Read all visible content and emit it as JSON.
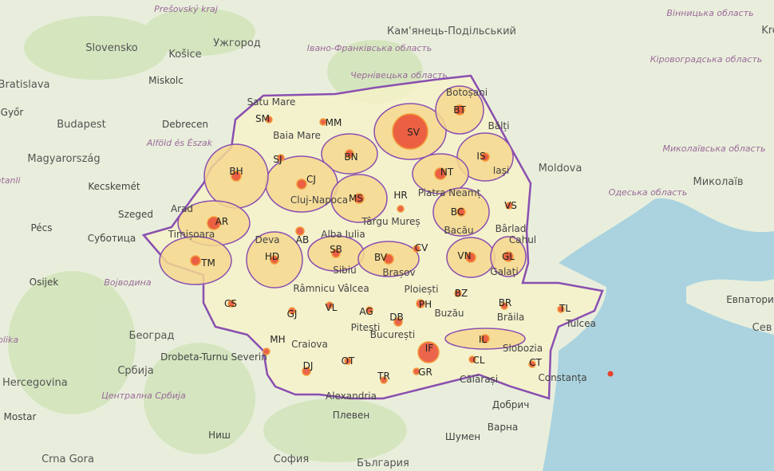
{
  "colors": {
    "land": "#e9eedc",
    "sea": "#aad3df",
    "forest": "#cfe3b8",
    "county_low": "#f6f2c9",
    "county_high": "#f5d88f",
    "border": "#8a4fb0",
    "bubble": "#e8412c"
  },
  "counties": [
    {
      "code": "SV",
      "level": "high"
    },
    {
      "code": "BT",
      "level": "high"
    },
    {
      "code": "IS",
      "level": "high"
    },
    {
      "code": "NT",
      "level": "high"
    },
    {
      "code": "BC",
      "level": "high"
    },
    {
      "code": "VS",
      "level": "low"
    },
    {
      "code": "VN",
      "level": "high"
    },
    {
      "code": "GL",
      "level": "high"
    },
    {
      "code": "MM",
      "level": "low"
    },
    {
      "code": "SM",
      "level": "low"
    },
    {
      "code": "SJ",
      "level": "low"
    },
    {
      "code": "BN",
      "level": "high"
    },
    {
      "code": "CJ",
      "level": "high"
    },
    {
      "code": "BH",
      "level": "high"
    },
    {
      "code": "MS",
      "level": "high"
    },
    {
      "code": "HR",
      "level": "low"
    },
    {
      "code": "AR",
      "level": "high"
    },
    {
      "code": "AB",
      "level": "low"
    },
    {
      "code": "TM",
      "level": "high"
    },
    {
      "code": "HD",
      "level": "high"
    },
    {
      "code": "SB",
      "level": "high"
    },
    {
      "code": "BV",
      "level": "high"
    },
    {
      "code": "CV",
      "level": "low"
    },
    {
      "code": "BZ",
      "level": "low"
    },
    {
      "code": "BR",
      "level": "low"
    },
    {
      "code": "TL",
      "level": "low"
    },
    {
      "code": "CS",
      "level": "low"
    },
    {
      "code": "GJ",
      "level": "low"
    },
    {
      "code": "VL",
      "level": "low"
    },
    {
      "code": "AG",
      "level": "low"
    },
    {
      "code": "PH",
      "level": "low"
    },
    {
      "code": "DB",
      "level": "low"
    },
    {
      "code": "MH",
      "level": "low"
    },
    {
      "code": "DJ",
      "level": "low"
    },
    {
      "code": "OT",
      "level": "low"
    },
    {
      "code": "TR",
      "level": "low"
    },
    {
      "code": "GR",
      "level": "low"
    },
    {
      "code": "IF",
      "level": "high"
    },
    {
      "code": "IL",
      "level": "high"
    },
    {
      "code": "CL",
      "level": "low"
    },
    {
      "code": "CT",
      "level": "low"
    }
  ],
  "background_labels": [
    "Prešovský kraj",
    "Slovensko",
    "Košice",
    "Ужгород",
    "Івано-Франківська область",
    "Кам'янець-Подільський",
    "Вінницька область",
    "Кіровоградська область",
    "Kre",
    "Bratislava",
    "Miskolc",
    "Győr",
    "Budapest",
    "Debrecen",
    "Alföld és Észak",
    "Magyarország",
    "Kecskemét",
    "Szeged",
    "Pécs",
    "Суботица",
    "Osijek",
    "Војводина",
    "Чернівецька область",
    "Bălți",
    "Moldova",
    "Миколаївська область",
    "Одеська область",
    "Миколаїв",
    "Евпатори",
    "Сев",
    "Satu Mare",
    "Baia Mare",
    "Cluj-Napoca",
    "Târgu Mureș",
    "Timișoara",
    "Arad",
    "Deva",
    "Alba Iulia",
    "Sibiu",
    "Brașov",
    "Bacău",
    "Piatra Neamț",
    "Botoșani",
    "Iași",
    "Bârlad",
    "Galați",
    "Brăila",
    "Buzău",
    "Râmnicu Vâlcea",
    "Pitești",
    "Ploiești",
    "București",
    "Craiova",
    "Drobeta-Turnu Severin",
    "Alexandria",
    "Slobozia",
    "Călărași",
    "Constanța",
    "Tulcea",
    "Cahul",
    "Београд",
    "Србија",
    "Централна Србија",
    "i Hercegovina",
    "Mostar",
    "Ниш",
    "Crna Gora",
    "Плевен",
    "Добрич",
    "Варна",
    "Шумен",
    "София",
    "България",
    "ntanli",
    "blika"
  ]
}
